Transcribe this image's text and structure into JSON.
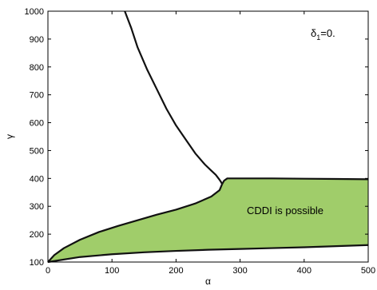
{
  "chart_data": {
    "type": "area",
    "title": "",
    "xlabel": "α",
    "ylabel": "γ",
    "xlim": [
      0,
      500
    ],
    "ylim": [
      100,
      1000
    ],
    "xticks": [
      0,
      100,
      200,
      300,
      400,
      500
    ],
    "yticks": [
      100,
      200,
      300,
      400,
      500,
      600,
      700,
      800,
      900,
      1000
    ],
    "grid": false,
    "annotations": {
      "delta_symbol": "δ",
      "delta_subscript": "1",
      "delta_value": "=0.",
      "region_label": "CDDI is possible"
    },
    "series": [
      {
        "x": [
          120,
          130,
          140,
          155,
          170,
          185,
          200,
          215,
          230,
          245,
          255,
          262,
          267,
          270,
          272
        ],
        "y": [
          1000,
          940,
          870,
          790,
          720,
          650,
          590,
          540,
          490,
          450,
          428,
          413,
          398,
          388,
          380
        ]
      },
      {
        "x": [
          0,
          10,
          25,
          50,
          80,
          110,
          140,
          170,
          200,
          230,
          255,
          268,
          272
        ],
        "y": [
          100,
          125,
          150,
          180,
          208,
          230,
          250,
          270,
          288,
          310,
          335,
          358,
          380
        ]
      },
      {
        "x": [
          272,
          275,
          280,
          300,
          350,
          400,
          450,
          500
        ],
        "y": [
          380,
          392,
          400,
          400,
          400,
          399,
          398,
          397
        ]
      },
      {
        "x": [
          0,
          50,
          100,
          150,
          200,
          250,
          300,
          350,
          400,
          450,
          500
        ],
        "y": [
          100,
          118,
          128,
          135,
          140,
          144,
          147,
          150,
          153,
          157,
          161
        ]
      }
    ],
    "fill_color": "#a0cd6a",
    "line_color": "#111111"
  }
}
